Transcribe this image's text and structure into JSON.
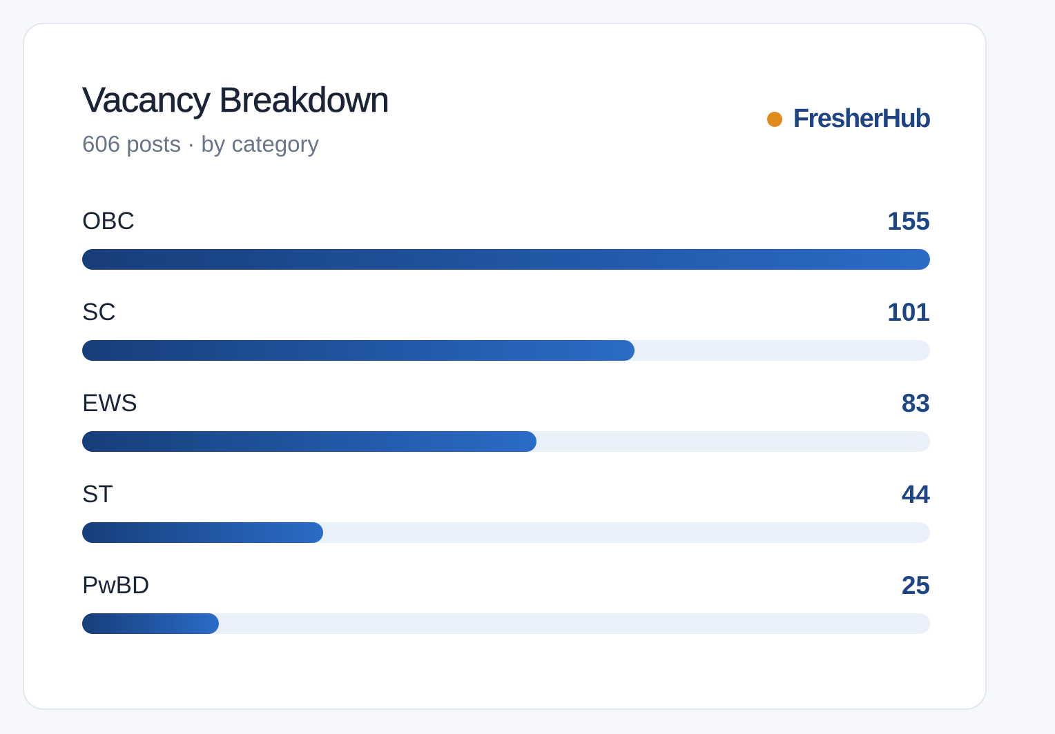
{
  "card": {
    "title": "Vacancy Breakdown",
    "subtitle": "606 posts · by category",
    "brand": "FresherHub"
  },
  "colors": {
    "brand_dot": "#e08a1e",
    "brand_text": "#1d4585",
    "bar_start": "#173e7a",
    "bar_end": "#2a6cc7",
    "track": "#e9f0f9"
  },
  "chart_data": {
    "type": "bar",
    "orientation": "horizontal",
    "categories": [
      "OBC",
      "SC",
      "EWS",
      "ST",
      "PwBD"
    ],
    "values": [
      155,
      101,
      83,
      44,
      25
    ],
    "xlim": [
      0,
      155
    ]
  }
}
